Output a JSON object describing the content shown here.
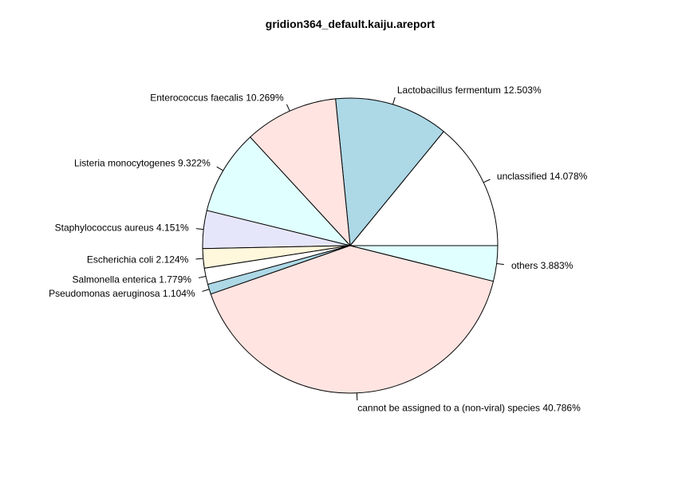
{
  "chart_data": {
    "type": "pie",
    "title": "gridion364_default.kaiju.areport",
    "direction": "counterclockwise",
    "start_angle_deg": 0,
    "slices": [
      {
        "label": "unclassified 14.078%",
        "value": 14.078,
        "color": "#ffffff"
      },
      {
        "label": "Lactobacillus fermentum 12.503%",
        "value": 12.503,
        "color": "#add8e6"
      },
      {
        "label": "Enterococcus faecalis 10.269%",
        "value": 10.269,
        "color": "#ffe4e1"
      },
      {
        "label": "Listeria monocytogenes 9.322%",
        "value": 9.322,
        "color": "#e0ffff"
      },
      {
        "label": "Staphylococcus aureus 4.151%",
        "value": 4.151,
        "color": "#e6e6fa"
      },
      {
        "label": "Escherichia coli 2.124%",
        "value": 2.124,
        "color": "#fff8dc"
      },
      {
        "label": "Salmonella enterica 1.779%",
        "value": 1.779,
        "color": "#ffffff"
      },
      {
        "label": "Pseudomonas aeruginosa 1.104%",
        "value": 1.104,
        "color": "#add8e6"
      },
      {
        "label": "cannot be assigned to a (non-viral) species 40.786%",
        "value": 40.786,
        "color": "#ffe4e1"
      },
      {
        "label": "others 3.883%",
        "value": 3.883,
        "color": "#e0ffff"
      }
    ]
  }
}
